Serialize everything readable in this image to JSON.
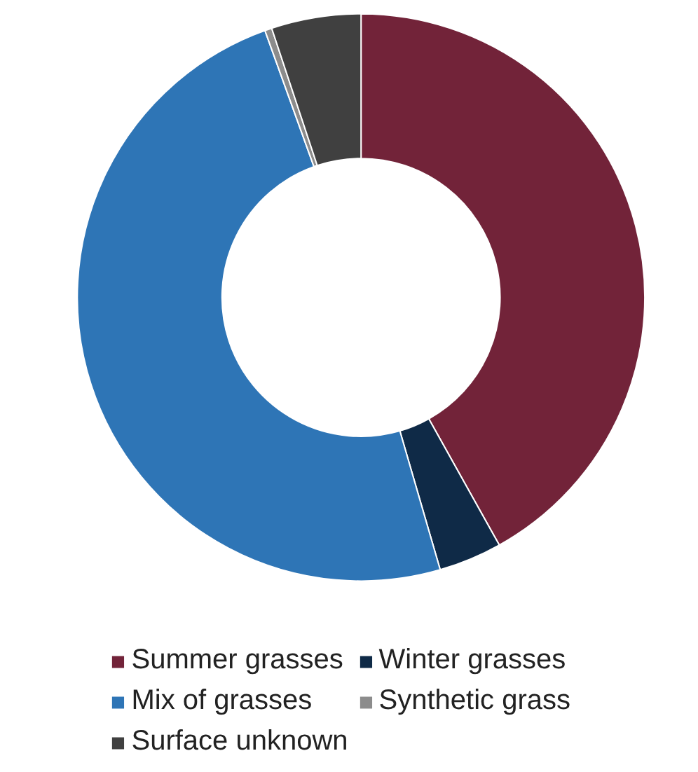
{
  "chart_data": {
    "type": "donut",
    "categories": [
      "Summer grasses",
      "Winter grasses",
      "Mix of grasses",
      "Synthetic grass",
      "Surface unknown"
    ],
    "values": [
      41.9,
      3.6,
      49.0,
      0.4,
      5.1
    ],
    "colors": [
      "#722339",
      "#0f2a47",
      "#2e75b6",
      "#8c8c8c",
      "#404040"
    ],
    "legend": "bottom"
  }
}
